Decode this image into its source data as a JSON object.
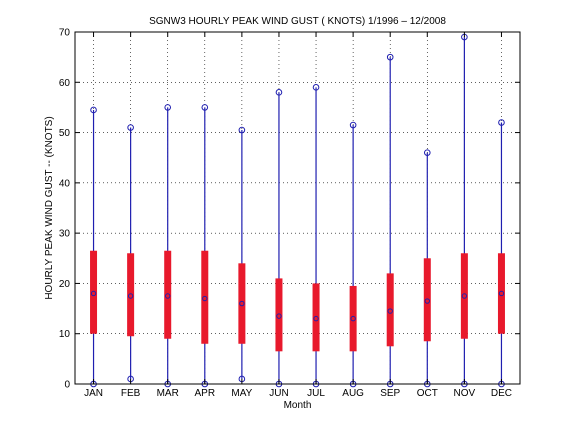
{
  "chart_data": {
    "type": "box",
    "title": "SGNW3  HOURLY PEAK WIND GUST ( KNOTS) 1/1996 – 12/2008",
    "xlabel": "Month",
    "ylabel": "HOURLY PEAK WIND GUST -- (KNOTS)",
    "ylim": [
      0,
      70
    ],
    "yticks": [
      0,
      10,
      20,
      30,
      40,
      50,
      60,
      70
    ],
    "grid": true,
    "categories": [
      "JAN",
      "FEB",
      "MAR",
      "APR",
      "MAY",
      "JUN",
      "JUL",
      "AUG",
      "SEP",
      "OCT",
      "NOV",
      "DEC"
    ],
    "series": [
      {
        "min": [
          0,
          1,
          0,
          0,
          1,
          0,
          0,
          0,
          0,
          0,
          0,
          0
        ],
        "q1": [
          10,
          9.5,
          9,
          8,
          8,
          6.5,
          6.5,
          6.5,
          7.5,
          8.5,
          9,
          10
        ],
        "median": [
          18,
          17.5,
          17.5,
          17,
          16,
          13.5,
          13,
          13,
          14.5,
          16.5,
          17.5,
          18
        ],
        "q3": [
          26.5,
          26,
          26.5,
          26.5,
          24,
          21,
          20,
          19.5,
          22,
          25,
          26,
          26
        ],
        "max": [
          54.5,
          51,
          55,
          55,
          50.5,
          58,
          59,
          51.5,
          65,
          46,
          69,
          52
        ],
        "whisker_low": [
          0,
          1,
          0,
          0,
          1,
          0,
          0,
          0,
          0,
          0,
          0,
          0
        ],
        "whisker_high": [
          54.5,
          51,
          55,
          55,
          50.5,
          58,
          59,
          51.5,
          65,
          46,
          69,
          52
        ]
      }
    ],
    "colors": {
      "box": "#e8192c",
      "whisker": "#1f1fb0",
      "marker": "#1f1fb0",
      "grid": "#000000",
      "axis": "#000000"
    }
  }
}
